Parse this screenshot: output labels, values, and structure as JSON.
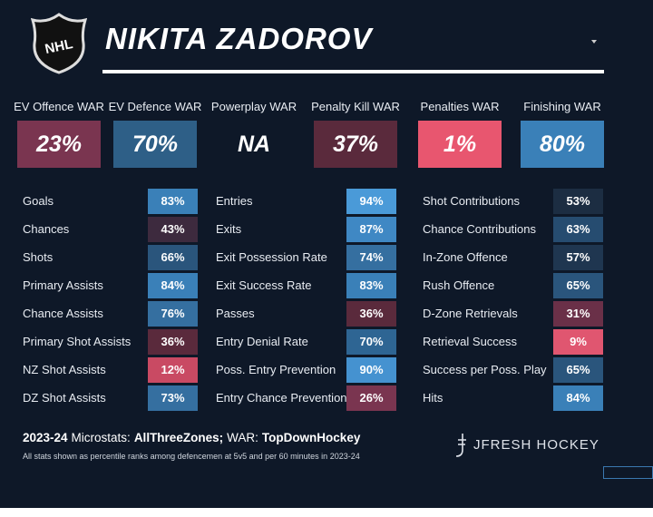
{
  "header": {
    "title": "NIKITA ZADOROV"
  },
  "war": [
    {
      "label": "EV Offence WAR",
      "value": "23%",
      "color": "#7a3550"
    },
    {
      "label": "EV Defence WAR",
      "value": "70%",
      "color": "#2e5f87"
    },
    {
      "label": "Powerplay WAR",
      "value": "NA",
      "color": "#0e1828"
    },
    {
      "label": "Penalty Kill WAR",
      "value": "37%",
      "color": "#5a2a3c"
    },
    {
      "label": "Penalties WAR",
      "value": "1%",
      "color": "#e8566f"
    },
    {
      "label": "Finishing WAR",
      "value": "80%",
      "color": "#3a80b8"
    }
  ],
  "columns": [
    [
      {
        "label": "Goals",
        "value": "83%",
        "color": "#3a80b8"
      },
      {
        "label": "Chances",
        "value": "43%",
        "color": "#3d2a3e"
      },
      {
        "label": "Shots",
        "value": "66%",
        "color": "#2a557c"
      },
      {
        "label": "Primary Assists",
        "value": "84%",
        "color": "#3a80b8"
      },
      {
        "label": "Chance Assists",
        "value": "76%",
        "color": "#356fa0"
      },
      {
        "label": "Primary Shot Assists",
        "value": "36%",
        "color": "#5a2a3c"
      },
      {
        "label": "NZ Shot Assists",
        "value": "12%",
        "color": "#c94a63"
      },
      {
        "label": "DZ Shot Assists",
        "value": "73%",
        "color": "#356fa0"
      }
    ],
    [
      {
        "label": "Entries",
        "value": "94%",
        "color": "#4a9ad8"
      },
      {
        "label": "Exits",
        "value": "87%",
        "color": "#3f88c4"
      },
      {
        "label": "Exit Possession Rate",
        "value": "74%",
        "color": "#356fa0"
      },
      {
        "label": "Exit Success Rate",
        "value": "83%",
        "color": "#3a80b8"
      },
      {
        "label": "Passes",
        "value": "36%",
        "color": "#5a2a3c"
      },
      {
        "label": "Entry Denial Rate",
        "value": "70%",
        "color": "#2e6593"
      },
      {
        "label": "Poss. Entry Prevention",
        "value": "90%",
        "color": "#4592d0"
      },
      {
        "label": "Entry Chance Prevention",
        "value": "26%",
        "color": "#7a3550"
      }
    ],
    [
      {
        "label": "Shot Contributions",
        "value": "53%",
        "color": "#1c2d42"
      },
      {
        "label": "Chance Contributions",
        "value": "63%",
        "color": "#264c70"
      },
      {
        "label": "In-Zone Offence",
        "value": "57%",
        "color": "#1f3650"
      },
      {
        "label": "Rush Offence",
        "value": "65%",
        "color": "#2a557c"
      },
      {
        "label": "D-Zone Retrievals",
        "value": "31%",
        "color": "#6a3048"
      },
      {
        "label": "Retrieval Success",
        "value": "9%",
        "color": "#e05670"
      },
      {
        "label": "Success per Poss. Play",
        "value": "65%",
        "color": "#2a557c"
      },
      {
        "label": "Hits",
        "value": "84%",
        "color": "#3a80b8"
      }
    ]
  ],
  "footer": {
    "season": "2023-24",
    "microstats_label": "Microstats:",
    "microstats_source": "AllThreeZones;",
    "war_label": "WAR:",
    "war_source": "TopDownHockey",
    "note": "All stats shown as percentile ranks among defencemen at 5v5 and per 60 minutes in 2023-24",
    "brand": "JFRESH HOCKEY"
  }
}
